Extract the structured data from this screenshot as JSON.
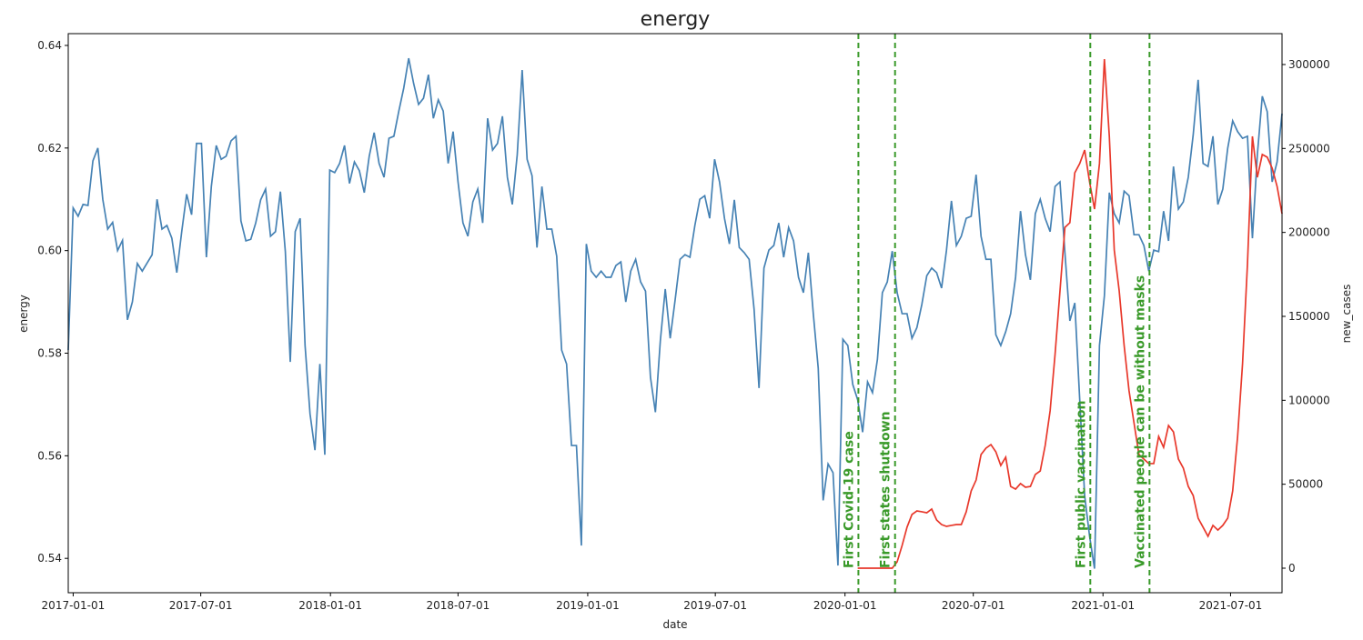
{
  "chart_data": {
    "type": "line",
    "title": "energy",
    "xlabel": "date",
    "ylabel": "energy",
    "y2label": "new_cases",
    "x": [
      "2016-12-25",
      "2017-01-01",
      "2017-01-08",
      "2017-01-15",
      "2017-01-22",
      "2017-01-29",
      "2017-02-05",
      "2017-02-12",
      "2017-02-19",
      "2017-02-26",
      "2017-03-05",
      "2017-03-12",
      "2017-03-19",
      "2017-03-26",
      "2017-04-02",
      "2017-04-09",
      "2017-04-16",
      "2017-04-23",
      "2017-04-30",
      "2017-05-07",
      "2017-05-14",
      "2017-05-21",
      "2017-05-28",
      "2017-06-04",
      "2017-06-11",
      "2017-06-18",
      "2017-06-25",
      "2017-07-02",
      "2017-07-09",
      "2017-07-16",
      "2017-07-23",
      "2017-07-30",
      "2017-08-06",
      "2017-08-13",
      "2017-08-20",
      "2017-08-27",
      "2017-09-03",
      "2017-09-10",
      "2017-09-17",
      "2017-09-24",
      "2017-10-01",
      "2017-10-08",
      "2017-10-15",
      "2017-10-22",
      "2017-10-29",
      "2017-11-05",
      "2017-11-12",
      "2017-11-19",
      "2017-11-26",
      "2017-12-03",
      "2017-12-10",
      "2017-12-17",
      "2017-12-24",
      "2017-12-31",
      "2018-01-07",
      "2018-01-14",
      "2018-01-21",
      "2018-01-28",
      "2018-02-04",
      "2018-02-11",
      "2018-02-18",
      "2018-02-25",
      "2018-03-04",
      "2018-03-11",
      "2018-03-18",
      "2018-03-25",
      "2018-04-01",
      "2018-04-08",
      "2018-04-15",
      "2018-04-22",
      "2018-04-29",
      "2018-05-06",
      "2018-05-13",
      "2018-05-20",
      "2018-05-27",
      "2018-06-03",
      "2018-06-10",
      "2018-06-17",
      "2018-06-24",
      "2018-07-01",
      "2018-07-08",
      "2018-07-15",
      "2018-07-22",
      "2018-07-29",
      "2018-08-05",
      "2018-08-12",
      "2018-08-19",
      "2018-08-26",
      "2018-09-02",
      "2018-09-09",
      "2018-09-16",
      "2018-09-23",
      "2018-09-30",
      "2018-10-07",
      "2018-10-14",
      "2018-10-21",
      "2018-10-28",
      "2018-11-04",
      "2018-11-11",
      "2018-11-18",
      "2018-11-25",
      "2018-12-02",
      "2018-12-09",
      "2018-12-16",
      "2018-12-23",
      "2018-12-30",
      "2019-01-06",
      "2019-01-13",
      "2019-01-20",
      "2019-01-27",
      "2019-02-03",
      "2019-02-10",
      "2019-02-17",
      "2019-02-24",
      "2019-03-03",
      "2019-03-10",
      "2019-03-17",
      "2019-03-24",
      "2019-03-31",
      "2019-04-07",
      "2019-04-14",
      "2019-04-21",
      "2019-04-28",
      "2019-05-05",
      "2019-05-12",
      "2019-05-19",
      "2019-05-26",
      "2019-06-02",
      "2019-06-09",
      "2019-06-16",
      "2019-06-23",
      "2019-06-30",
      "2019-07-07",
      "2019-07-14",
      "2019-07-21",
      "2019-07-28",
      "2019-08-04",
      "2019-08-11",
      "2019-08-18",
      "2019-08-25",
      "2019-09-01",
      "2019-09-08",
      "2019-09-15",
      "2019-09-22",
      "2019-09-29",
      "2019-10-06",
      "2019-10-13",
      "2019-10-20",
      "2019-10-27",
      "2019-11-03",
      "2019-11-10",
      "2019-11-17",
      "2019-11-24",
      "2019-12-01",
      "2019-12-08",
      "2019-12-15",
      "2019-12-22",
      "2019-12-29",
      "2020-01-05",
      "2020-01-12",
      "2020-01-19",
      "2020-01-26",
      "2020-02-02",
      "2020-02-09",
      "2020-02-16",
      "2020-02-23",
      "2020-03-01",
      "2020-03-08",
      "2020-03-15",
      "2020-03-22",
      "2020-03-29",
      "2020-04-05",
      "2020-04-12",
      "2020-04-19",
      "2020-04-26",
      "2020-05-03",
      "2020-05-10",
      "2020-05-17",
      "2020-05-24",
      "2020-05-31",
      "2020-06-07",
      "2020-06-14",
      "2020-06-21",
      "2020-06-28",
      "2020-07-05",
      "2020-07-12",
      "2020-07-19",
      "2020-07-26",
      "2020-08-02",
      "2020-08-09",
      "2020-08-16",
      "2020-08-23",
      "2020-08-30",
      "2020-09-06",
      "2020-09-13",
      "2020-09-20",
      "2020-09-27",
      "2020-10-04",
      "2020-10-11",
      "2020-10-18",
      "2020-10-25",
      "2020-11-01",
      "2020-11-08",
      "2020-11-15",
      "2020-11-22",
      "2020-11-29",
      "2020-12-06",
      "2020-12-13",
      "2020-12-20",
      "2020-12-27",
      "2021-01-03",
      "2021-01-10",
      "2021-01-17",
      "2021-01-24",
      "2021-01-31",
      "2021-02-07",
      "2021-02-14",
      "2021-02-21",
      "2021-02-28",
      "2021-03-07",
      "2021-03-14",
      "2021-03-21",
      "2021-03-28",
      "2021-04-04",
      "2021-04-11",
      "2021-04-18",
      "2021-04-25",
      "2021-05-02",
      "2021-05-09",
      "2021-05-16",
      "2021-05-23",
      "2021-05-30",
      "2021-06-06",
      "2021-06-13",
      "2021-06-20",
      "2021-06-27",
      "2021-07-04",
      "2021-07-11",
      "2021-07-18",
      "2021-07-25",
      "2021-08-01",
      "2021-08-08",
      "2021-08-15",
      "2021-08-22",
      "2021-08-29",
      "2021-09-05",
      "2021-09-12"
    ],
    "series": [
      {
        "name": "energy",
        "color": "#4682b4",
        "values": [
          0.5806,
          0.6083,
          0.6067,
          0.609,
          0.6088,
          0.6175,
          0.62,
          0.61,
          0.6042,
          0.6055,
          0.6,
          0.602,
          0.5865,
          0.59,
          0.5975,
          0.596,
          0.5976,
          0.5992,
          0.61,
          0.6042,
          0.6049,
          0.6024,
          0.5957,
          0.6037,
          0.611,
          0.607,
          0.6209,
          0.6209,
          0.5987,
          0.6125,
          0.6205,
          0.6178,
          0.6184,
          0.6214,
          0.6223,
          0.6058,
          0.6019,
          0.6022,
          0.6054,
          0.6099,
          0.612,
          0.6028,
          0.6037,
          0.6115,
          0.5998,
          0.5783,
          0.6037,
          0.6063,
          0.5815,
          0.5682,
          0.5611,
          0.5779,
          0.5602,
          0.6157,
          0.6152,
          0.617,
          0.6205,
          0.6131,
          0.6173,
          0.6156,
          0.6113,
          0.6184,
          0.623,
          0.617,
          0.6143,
          0.6219,
          0.6223,
          0.6272,
          0.6317,
          0.6375,
          0.6326,
          0.6285,
          0.6297,
          0.6343,
          0.6258,
          0.6294,
          0.6272,
          0.617,
          0.6232,
          0.6134,
          0.6054,
          0.6028,
          0.6095,
          0.612,
          0.6054,
          0.6258,
          0.6196,
          0.6209,
          0.6262,
          0.6143,
          0.609,
          0.6187,
          0.6352,
          0.6178,
          0.6146,
          0.6006,
          0.6125,
          0.6042,
          0.6042,
          0.5989,
          0.5806,
          0.5779,
          0.562,
          0.562,
          0.5425,
          0.6013,
          0.596,
          0.5948,
          0.596,
          0.5948,
          0.5948,
          0.5971,
          0.5978,
          0.59,
          0.596,
          0.5983,
          0.5939,
          0.5921,
          0.5753,
          0.5685,
          0.5824,
          0.5925,
          0.5829,
          0.5904,
          0.5983,
          0.5992,
          0.5987,
          0.6049,
          0.61,
          0.6107,
          0.6063,
          0.6178,
          0.6134,
          0.6063,
          0.6013,
          0.6099,
          0.6006,
          0.5996,
          0.5983,
          0.5886,
          0.5732,
          0.5966,
          0.6001,
          0.601,
          0.6054,
          0.5987,
          0.6045,
          0.6019,
          0.5948,
          0.5918,
          0.5996,
          0.5877,
          0.5771,
          0.5513,
          0.5584,
          0.5567,
          0.5386,
          0.5827,
          0.5815,
          0.5739,
          0.5709,
          0.5646,
          0.5744,
          0.5723,
          0.5788,
          0.5918,
          0.5939,
          0.5999,
          0.5918,
          0.5877,
          0.5877,
          0.5829,
          0.585,
          0.5895,
          0.5951,
          0.5966,
          0.5957,
          0.5927,
          0.6001,
          0.6097,
          0.601,
          0.6028,
          0.6063,
          0.6067,
          0.6148,
          0.6028,
          0.5983,
          0.5983,
          0.5836,
          0.5815,
          0.5842,
          0.5877,
          0.5948,
          0.6077,
          0.5992,
          0.5943,
          0.6072,
          0.61,
          0.6063,
          0.6037,
          0.6125,
          0.6134,
          0.5996,
          0.5863,
          0.5898,
          0.5709,
          0.5522,
          0.5443,
          0.538,
          0.5815,
          0.5912,
          0.6113,
          0.6072,
          0.6054,
          0.6116,
          0.6107,
          0.6031,
          0.6031,
          0.601,
          0.596,
          0.6001,
          0.5998,
          0.6077,
          0.6019,
          0.6164,
          0.6081,
          0.6095,
          0.6143,
          0.6226,
          0.6333,
          0.617,
          0.6164,
          0.6223,
          0.609,
          0.612,
          0.62,
          0.6253,
          0.6232,
          0.6219,
          0.6223,
          0.6024,
          0.6187,
          0.6301,
          0.6271,
          0.6134,
          0.6173,
          0.6267
        ]
      },
      {
        "name": "new_cases",
        "color": "#e8382b",
        "axis": "y2",
        "values": [
          null,
          null,
          null,
          null,
          null,
          null,
          null,
          null,
          null,
          null,
          null,
          null,
          null,
          null,
          null,
          null,
          null,
          null,
          null,
          null,
          null,
          null,
          null,
          null,
          null,
          null,
          null,
          null,
          null,
          null,
          null,
          null,
          null,
          null,
          null,
          null,
          null,
          null,
          null,
          null,
          null,
          null,
          null,
          null,
          null,
          null,
          null,
          null,
          null,
          null,
          null,
          null,
          null,
          null,
          null,
          null,
          null,
          null,
          null,
          null,
          null,
          null,
          null,
          null,
          null,
          null,
          null,
          null,
          null,
          null,
          null,
          null,
          null,
          null,
          null,
          null,
          null,
          null,
          null,
          null,
          null,
          null,
          null,
          null,
          null,
          null,
          null,
          null,
          null,
          null,
          null,
          null,
          null,
          null,
          null,
          null,
          null,
          null,
          null,
          null,
          null,
          null,
          null,
          null,
          null,
          null,
          null,
          null,
          null,
          null,
          null,
          null,
          null,
          null,
          null,
          null,
          null,
          null,
          null,
          null,
          null,
          null,
          null,
          null,
          null,
          null,
          null,
          null,
          null,
          null,
          null,
          null,
          null,
          null,
          null,
          null,
          null,
          null,
          null,
          null,
          null,
          null,
          null,
          null,
          null,
          null,
          null,
          null,
          null,
          null,
          null,
          null,
          null,
          null,
          null,
          null,
          null,
          null,
          null,
          null,
          0,
          0,
          0,
          0,
          0,
          0,
          0,
          0,
          3800,
          13500,
          24400,
          32000,
          34100,
          33600,
          33000,
          35200,
          28700,
          26000,
          24900,
          25500,
          26000,
          26000,
          33600,
          46000,
          52500,
          67700,
          71500,
          73600,
          69300,
          61200,
          66100,
          48700,
          47100,
          50400,
          48200,
          48700,
          55800,
          57900,
          73100,
          93700,
          127300,
          165200,
          203000,
          205800,
          235500,
          241000,
          249100,
          230000,
          213900,
          241000,
          303200,
          257200,
          189500,
          165200,
          132700,
          105600,
          86600,
          67700,
          65000,
          62300,
          62300,
          78500,
          72000,
          85000,
          81200,
          65000,
          59600,
          48700,
          43300,
          29800,
          24400,
          19000,
          25500,
          22700,
          25500,
          29800,
          46000,
          78500,
          121800,
          181400,
          257200,
          232800,
          246400,
          244800,
          238300,
          227400,
          211200
        ]
      }
    ],
    "events": [
      {
        "date": "2020-01-20",
        "label": "First Covid-19 case"
      },
      {
        "date": "2020-03-12",
        "label": "First states shutdown"
      },
      {
        "date": "2020-12-14",
        "label": "First public vaccination"
      },
      {
        "date": "2021-03-08",
        "label": "Vaccinated people can be without masks"
      }
    ],
    "event_color": "#3a9a2a",
    "xlim": [
      "2016-12-25",
      "2021-09-12"
    ],
    "xticks": [
      "2017-01-01",
      "2017-07-01",
      "2018-01-01",
      "2018-07-01",
      "2019-01-01",
      "2019-07-01",
      "2020-01-01",
      "2020-07-01",
      "2021-01-01",
      "2021-07-01"
    ],
    "ylim": [
      0.5333,
      0.6423
    ],
    "yticks": [
      0.54,
      0.56,
      0.58,
      {
        "value": 0.6,
        "label": "0.60"
      },
      0.62,
      0.64
    ],
    "y2lim": [
      -14620,
      318400
    ],
    "y2ticks": [
      0,
      50000,
      100000,
      150000,
      200000,
      250000,
      300000
    ],
    "grid": false
  }
}
